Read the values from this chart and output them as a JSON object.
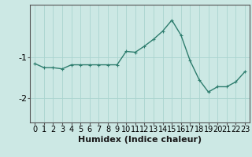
{
  "x": [
    0,
    1,
    2,
    3,
    4,
    5,
    6,
    7,
    8,
    9,
    10,
    11,
    12,
    13,
    14,
    15,
    16,
    17,
    18,
    19,
    20,
    21,
    22,
    23
  ],
  "y": [
    -1.15,
    -1.25,
    -1.25,
    -1.28,
    -1.18,
    -1.18,
    -1.18,
    -1.18,
    -1.18,
    -1.18,
    -0.85,
    -0.87,
    -0.72,
    -0.55,
    -0.35,
    -0.08,
    -0.45,
    -1.08,
    -1.55,
    -1.85,
    -1.72,
    -1.72,
    -1.6,
    -1.35
  ],
  "line_color": "#2e7d6e",
  "marker": "+",
  "marker_size": 3,
  "bg_color": "#cce8e4",
  "grid_color": "#aad4cf",
  "xlabel": "Humidex (Indice chaleur)",
  "xlabel_fontsize": 8,
  "yticks": [
    -2,
    -1
  ],
  "ylim": [
    -2.6,
    0.3
  ],
  "xlim": [
    -0.5,
    23.5
  ],
  "tick_fontsize": 7,
  "line_width": 1.0,
  "spine_color": "#555555"
}
